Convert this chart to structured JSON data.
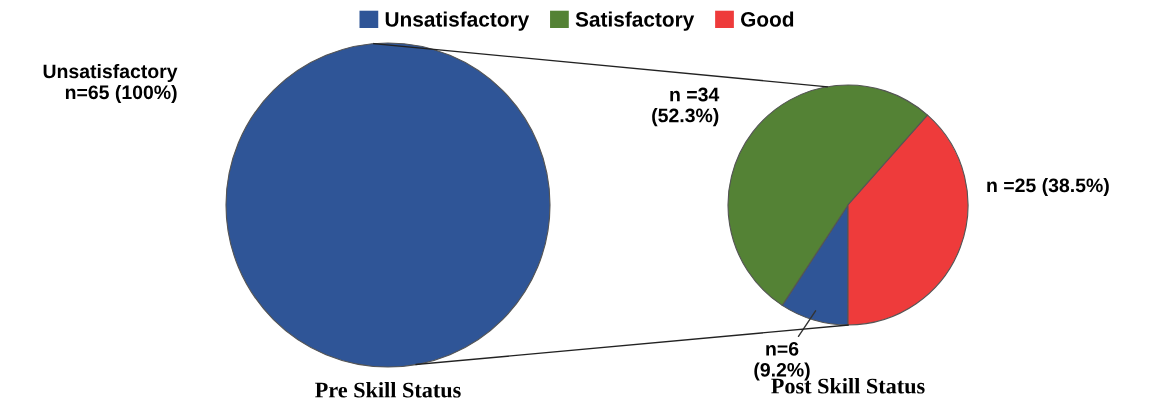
{
  "chart_data": [
    {
      "type": "pie",
      "title": "Pre Skill Status",
      "categories": [
        "Unsatisfactory"
      ],
      "values": [
        65
      ],
      "colors": [
        "#2f5597"
      ],
      "value_labels": [
        "n=65 (100%)"
      ]
    },
    {
      "type": "pie",
      "title": "Post Skill Status",
      "categories": [
        "Unsatisfactory",
        "Satisfactory",
        "Good"
      ],
      "values": [
        6,
        34,
        25
      ],
      "colors": [
        "#2f5597",
        "#548235",
        "#ee3b3b"
      ],
      "value_labels": [
        "n=6\n(9.2%)",
        "n =34\n(52.3%)",
        "n =25 (38.5%)"
      ],
      "legend": "top"
    }
  ]
}
